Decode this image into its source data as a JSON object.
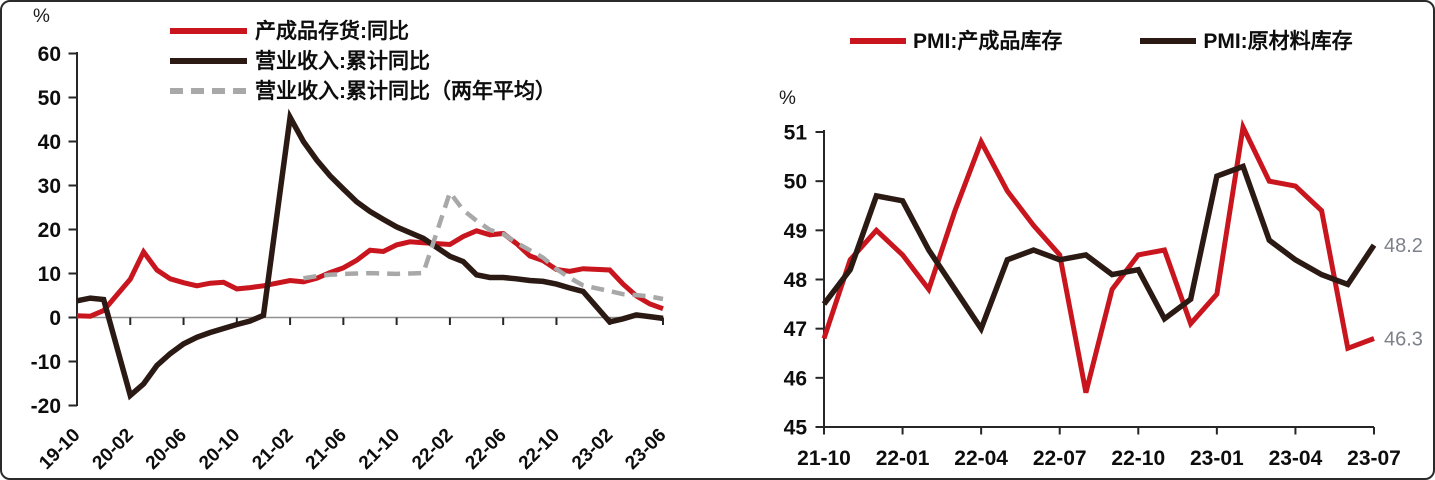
{
  "figure": {
    "background": "#ffffff",
    "border_color": "#2b2b2b",
    "axis_color": "#262626",
    "zero_line_color": "#909090",
    "tick_label_color": "#0d0d0d",
    "end_label_color": "#7d818b"
  },
  "chart_data": [
    {
      "id": "industrial-enterprises",
      "type": "line",
      "ylabel": "%",
      "ylim": [
        -20,
        60
      ],
      "ytick_step": 10,
      "grid": false,
      "legend_position": "top-left",
      "x": [
        "19-10",
        "19-11",
        "19-12",
        "20-02",
        "20-03",
        "20-04",
        "20-05",
        "20-06",
        "20-07",
        "20-08",
        "20-09",
        "20-10",
        "20-11",
        "20-12",
        "21-02",
        "21-03",
        "21-04",
        "21-05",
        "21-06",
        "21-07",
        "21-08",
        "21-09",
        "21-10",
        "21-11",
        "21-12",
        "22-02",
        "22-03",
        "22-04",
        "22-05",
        "22-06",
        "22-07",
        "22-08",
        "22-09",
        "22-10",
        "22-11",
        "22-12",
        "23-02",
        "23-03",
        "23-04",
        "23-05",
        "23-06"
      ],
      "xticks": [
        "19-10",
        "20-02",
        "20-06",
        "20-10",
        "21-02",
        "21-06",
        "21-10",
        "22-02",
        "22-06",
        "22-10",
        "23-02",
        "23-06"
      ],
      "series": [
        {
          "name": "产成品存货:同比",
          "color": "#c9151e",
          "dash": false,
          "width": 5,
          "values": [
            0.4,
            0.3,
            1.6,
            8.7,
            14.9,
            10.8,
            8.8,
            7.9,
            7.2,
            7.8,
            8.0,
            6.5,
            6.8,
            7.2,
            8.4,
            8.1,
            8.9,
            10.2,
            11.3,
            13.0,
            15.3,
            15.0,
            16.5,
            17.2,
            17.0,
            16.6,
            18.4,
            19.7,
            18.8,
            19.1,
            16.8,
            14.0,
            12.9,
            10.9,
            10.5,
            11.1,
            10.8,
            7.6,
            4.9,
            3.1,
            2.0
          ]
        },
        {
          "name": "营业收入:累计同比",
          "color": "#2b1a14",
          "dash": false,
          "width": 5.5,
          "values": [
            3.8,
            4.4,
            4.1,
            -17.7,
            -15.1,
            -10.9,
            -8.2,
            -6.0,
            -4.5,
            -3.4,
            -2.5,
            -1.6,
            -0.8,
            0.5,
            45.5,
            40.0,
            35.8,
            32.2,
            29.2,
            26.3,
            24.1,
            22.3,
            20.6,
            19.3,
            18.0,
            13.9,
            12.7,
            9.7,
            9.1,
            9.1,
            8.8,
            8.4,
            8.2,
            7.6,
            6.7,
            5.9,
            -1.0,
            -0.3,
            0.6,
            0.2,
            -0.2
          ]
        },
        {
          "name": "营业收入:累计同比（两年平均）",
          "color": "#a8a8a8",
          "dash": true,
          "width": 4.5,
          "values": [
            null,
            null,
            null,
            null,
            null,
            null,
            null,
            null,
            null,
            null,
            null,
            null,
            null,
            null,
            null,
            8.9,
            9.4,
            9.7,
            9.9,
            10.0,
            10.1,
            10.0,
            9.9,
            10.0,
            10.1,
            28.4,
            24.4,
            22.0,
            19.9,
            19.0,
            17.0,
            15.3,
            13.6,
            11.0,
            9.0,
            7.3,
            6.0,
            5.3,
            5.1,
            4.8,
            4.2
          ]
        }
      ]
    },
    {
      "id": "pmi-inventories",
      "type": "line",
      "ylabel": "%",
      "ylim": [
        45,
        51
      ],
      "ytick_step": 1,
      "grid": false,
      "legend_position": "top",
      "x": [
        "21-10",
        "21-11",
        "21-12",
        "22-01",
        "22-02",
        "22-03",
        "22-04",
        "22-05",
        "22-06",
        "22-07",
        "22-08",
        "22-09",
        "22-10",
        "22-11",
        "22-12",
        "23-01",
        "23-02",
        "23-03",
        "23-04",
        "23-05",
        "23-06",
        "23-07"
      ],
      "xticks": [
        "21-10",
        "22-01",
        "22-04",
        "22-07",
        "22-10",
        "23-01",
        "23-04",
        "23-07"
      ],
      "series": [
        {
          "name": "PMI:产成品库存",
          "color": "#c9151e",
          "dash": false,
          "width": 5,
          "values": [
            46.3,
            47.9,
            48.5,
            48.0,
            47.3,
            48.9,
            50.3,
            49.3,
            48.6,
            48.0,
            45.2,
            47.3,
            48.0,
            48.1,
            46.6,
            47.2,
            50.6,
            49.5,
            49.4,
            48.9,
            46.1,
            46.3
          ]
        },
        {
          "name": "PMI:原材料库存",
          "color": "#2b1a14",
          "dash": false,
          "width": 5.5,
          "values": [
            47.0,
            47.7,
            49.2,
            49.1,
            48.1,
            47.3,
            46.5,
            47.9,
            48.1,
            47.9,
            48.0,
            47.6,
            47.7,
            46.7,
            47.1,
            49.6,
            49.8,
            48.3,
            47.9,
            47.6,
            47.4,
            48.2
          ]
        }
      ],
      "end_labels": [
        {
          "text": "48.2",
          "series_index": 1
        },
        {
          "text": "46.3",
          "series_index": 0
        }
      ]
    }
  ]
}
